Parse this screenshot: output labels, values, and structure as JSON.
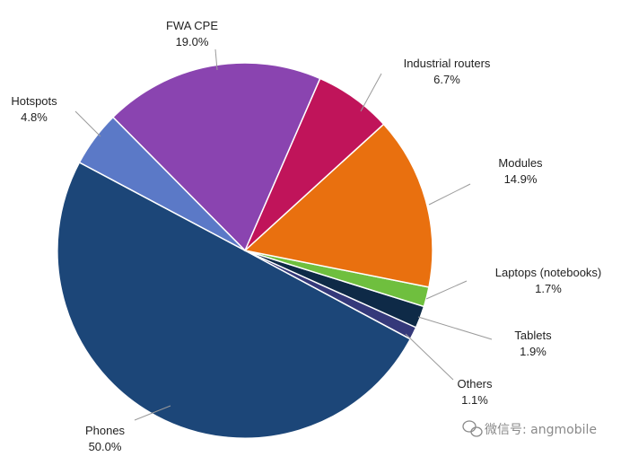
{
  "chart_data": {
    "type": "pie",
    "title": "",
    "series": [
      {
        "name": "Phones",
        "value": 50.0,
        "value_label": "50.0%",
        "color": "#1c4678"
      },
      {
        "name": "Others",
        "value": 1.1,
        "value_label": "1.1%",
        "color": "#35397a"
      },
      {
        "name": "Tablets",
        "value": 1.9,
        "value_label": "1.9%",
        "color": "#0e2a47"
      },
      {
        "name": "Laptops (notebooks)",
        "value": 1.7,
        "value_label": "1.7%",
        "color": "#6fbf3e"
      },
      {
        "name": "Modules",
        "value": 14.9,
        "value_label": "14.9%",
        "color": "#e9700f"
      },
      {
        "name": "Industrial routers",
        "value": 6.7,
        "value_label": "6.7%",
        "color": "#c0145a"
      },
      {
        "name": "FWA CPE",
        "value": 19.0,
        "value_label": "19.0%",
        "color": "#8a44b0"
      },
      {
        "name": "Hotspots",
        "value": 4.8,
        "value_label": "4.8%",
        "color": "#5b79c7"
      }
    ],
    "start_category": "Phones",
    "direction": "counter-clockwise",
    "legend": "none",
    "label_style": "callout lines outside pie"
  },
  "watermark": {
    "icon": "wechat-icon",
    "text": "微信号: angmobile"
  }
}
